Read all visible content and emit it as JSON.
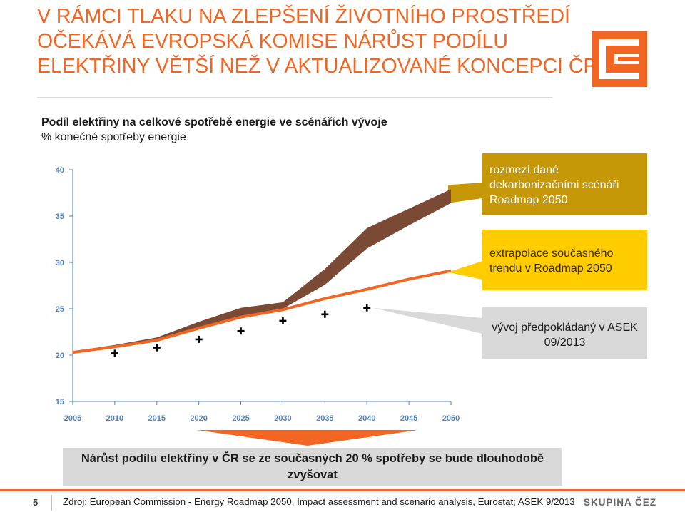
{
  "title_lines": [
    "V RÁMCI TLAKU NA ZLEPŠENÍ ŽIVOTNÍHO PROSTŘEDÍ",
    "OČEKÁVÁ EVROPSKÁ KOMISE NÁRŮST PODÍLU",
    "ELEKTŘINY VĚTŠÍ NEŽ V AKTUALIZOVANÉ KONCEPCI ČR"
  ],
  "subtitle": {
    "line1": "Podíl elektřiny na celkové spotřebě energie ve scénářích vývoje",
    "line2": "% konečné spotřeby energie"
  },
  "callouts": {
    "band": "rozmezí dané dekarbonizačními scénáři Roadmap 2050",
    "trend": "extrapolace současného trendu v Roadmap 2050",
    "asek": "vývoj předpokládaný v ASEK 09/2013"
  },
  "bottom_text": "Nárůst podílu elektřiny v ČR se ze současných 20 % spotřeby se bude dlouhodobě zvyšovat",
  "footer": {
    "page": "5",
    "source": "Zdroj: European Commission - Energy Roadmap 2050, Impact assessment and scenario analysis, Eurostat; ASEK 9/2013",
    "brand": "SKUPINA ČEZ"
  },
  "colors": {
    "accent": "#f26522",
    "band": "#7b4a35",
    "trend": "#f26522",
    "band_callout": "#c69807",
    "trend_callout": "#ffcc00",
    "asek_callout": "#d9d9d9",
    "axis": "#4f81bd"
  },
  "icons": {
    "logo": "cez-logo"
  },
  "chart_data": {
    "type": "line",
    "x_ticks": [
      2005,
      2010,
      2015,
      2020,
      2025,
      2030,
      2035,
      2040,
      2045,
      2050
    ],
    "y_ticks": [
      15,
      20,
      25,
      30,
      35,
      40
    ],
    "xlim": [
      2005,
      2050
    ],
    "ylim": [
      15,
      40
    ],
    "grid": false,
    "series": [
      {
        "kind": "band",
        "x": [
          2005,
          2010,
          2015,
          2020,
          2025,
          2030,
          2035,
          2040,
          2045,
          2050
        ],
        "lower": [
          20.3,
          20.9,
          21.7,
          22.8,
          24.0,
          25.0,
          27.6,
          31.5,
          34.0,
          36.4
        ],
        "upper": [
          20.4,
          21.1,
          21.9,
          23.6,
          25.1,
          25.7,
          29.3,
          33.7,
          35.8,
          37.9
        ]
      },
      {
        "kind": "line",
        "x": [
          2005,
          2010,
          2015,
          2020,
          2025,
          2030,
          2035,
          2040,
          2045,
          2050
        ],
        "values": [
          20.3,
          20.9,
          21.6,
          22.9,
          24.1,
          24.9,
          26.1,
          27.1,
          28.2,
          29.1
        ]
      },
      {
        "kind": "markers",
        "x": [
          2010,
          2015,
          2020,
          2025,
          2030,
          2035,
          2040
        ],
        "values": [
          20.2,
          20.8,
          21.7,
          22.6,
          23.7,
          24.4,
          25.1
        ]
      }
    ]
  }
}
